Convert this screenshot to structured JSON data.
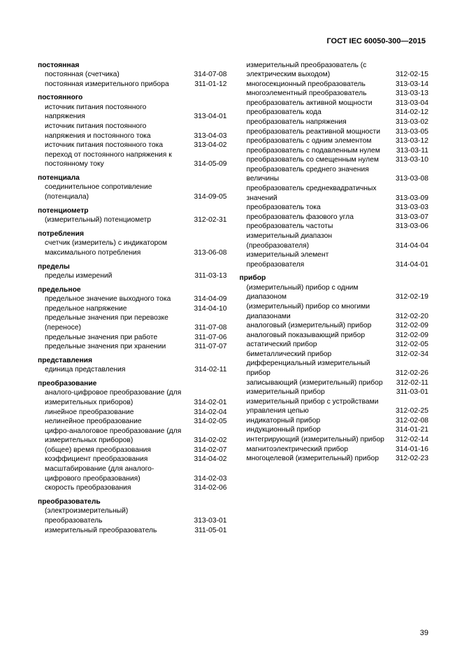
{
  "header": "ГОСТ IEC 60050-300—2015",
  "pageNumber": "39",
  "left": [
    {
      "type": "head",
      "text": "постоянная",
      "first": true
    },
    {
      "type": "entry",
      "term": "постоянная (счетчика)",
      "code": "314-07-08"
    },
    {
      "type": "entry",
      "term": "постоянная измерительного прибора",
      "code": "311-01-12"
    },
    {
      "type": "head",
      "text": "постоянного"
    },
    {
      "type": "entry",
      "term": "источник питания постоянного напряжения",
      "code": "313-04-01"
    },
    {
      "type": "entry",
      "term": "источник питания постоянного напряжения и постоянного тока",
      "code": "313-04-03"
    },
    {
      "type": "entry",
      "term": "источник питания постоянного тока",
      "code": "313-04-02"
    },
    {
      "type": "entry",
      "term": "переход от постоянного напряжения к постоянному току",
      "code": "314-05-09"
    },
    {
      "type": "head",
      "text": "потенциала"
    },
    {
      "type": "entry",
      "term": "соединительное сопротивление (потенциала)",
      "code": "314-09-05"
    },
    {
      "type": "head",
      "text": "потенциометр"
    },
    {
      "type": "entry",
      "term": "(измерительный) потенциометр",
      "code": "312-02-31"
    },
    {
      "type": "head",
      "text": "потребления"
    },
    {
      "type": "entry",
      "term": "счетчик (измеритель) с индикатором максимального потребления",
      "code": "313-06-08"
    },
    {
      "type": "head",
      "text": "пределы"
    },
    {
      "type": "entry",
      "term": "пределы измерений",
      "code": "311-03-13"
    },
    {
      "type": "head",
      "text": "предельное"
    },
    {
      "type": "entry",
      "term": "предельное значение выходного тока",
      "code": "314-04-09"
    },
    {
      "type": "entry",
      "term": "предельное напряжение",
      "code": "314-04-10"
    },
    {
      "type": "entry",
      "term": "предельные значения при перевозке (переносе)",
      "code": "311-07-08"
    },
    {
      "type": "entry",
      "term": "предельные значения при работе",
      "code": "311-07-06"
    },
    {
      "type": "entry",
      "term": "предельные значения при хранении",
      "code": "311-07-07"
    },
    {
      "type": "head",
      "text": "представления"
    },
    {
      "type": "entry",
      "term": "единица представления",
      "code": "314-02-11"
    },
    {
      "type": "head",
      "text": "преобразование"
    },
    {
      "type": "entry",
      "term": "аналого-цифровое преобразование (для измерительных приборов)",
      "code": "314-02-01"
    },
    {
      "type": "entry",
      "term": "линейное преобразование",
      "code": "314-02-04"
    },
    {
      "type": "entry",
      "term": "нелинейное преобразование",
      "code": "314-02-05"
    },
    {
      "type": "entry",
      "term": "цифро-аналоговое преобразование (для измерительных приборов)",
      "code": "314-02-02"
    },
    {
      "type": "entry",
      "term": "(общее) время преобразования",
      "code": "314-02-07"
    },
    {
      "type": "entry",
      "term": "коэффициент преобразования",
      "code": "314-04-02"
    },
    {
      "type": "entry",
      "term": "масштабирование (для аналого-цифрового преобразования)",
      "code": "314-02-03"
    },
    {
      "type": "entry",
      "term": "скорость преобразования",
      "code": "314-02-06"
    },
    {
      "type": "head",
      "text": "преобразователь"
    },
    {
      "type": "entry",
      "term": "(электроизмерительный) преобразователь",
      "code": "313-03-01"
    },
    {
      "type": "entry",
      "term": "измерительный преобразователь",
      "code": "311-05-01"
    }
  ],
  "right": [
    {
      "type": "entry",
      "term": "измерительный преобразователь (с электрическим выходом)",
      "code": "312-02-15"
    },
    {
      "type": "entry",
      "term": "многосекционный преобразователь",
      "code": "313-03-14"
    },
    {
      "type": "entry",
      "term": "многоэлементный преобразователь",
      "code": "313-03-13"
    },
    {
      "type": "entry",
      "term": "преобразователь активной мощности",
      "code": "313-03-04"
    },
    {
      "type": "entry",
      "term": "преобразователь кода",
      "code": "314-02-12"
    },
    {
      "type": "entry",
      "term": "преобразователь напряжения",
      "code": "313-03-02"
    },
    {
      "type": "entry",
      "term": "преобразователь реактивной мощности",
      "code": "313-03-05"
    },
    {
      "type": "entry",
      "term": "преобразователь с одним элементом",
      "code": "313-03-12"
    },
    {
      "type": "entry",
      "term": "преобразователь с подавленным нулем",
      "code": "313-03-11"
    },
    {
      "type": "entry",
      "term": "преобразователь со смещенным нулем",
      "code": "313-03-10"
    },
    {
      "type": "entry",
      "term": "преобразователь среднего значения величины",
      "code": "313-03-08"
    },
    {
      "type": "entry",
      "term": "преобразователь среднеквадратичных значений",
      "code": "313-03-09"
    },
    {
      "type": "entry",
      "term": "преобразователь тока",
      "code": "313-03-03"
    },
    {
      "type": "entry",
      "term": "преобразователь фазового угла",
      "code": "313-03-07"
    },
    {
      "type": "entry",
      "term": "преобразователь частоты",
      "code": "313-03-06"
    },
    {
      "type": "entry",
      "term": "измерительный диапазон (преобразователя)",
      "code": "314-04-04"
    },
    {
      "type": "entry",
      "term": "измерительный элемент преобразователя",
      "code": "314-04-01"
    },
    {
      "type": "head",
      "text": "прибор"
    },
    {
      "type": "entry",
      "term": "(измерительный) прибор с одним диапазоном",
      "code": "312-02-19"
    },
    {
      "type": "entry",
      "term": "(измерительный) прибор со многими диапазонами",
      "code": "312-02-20"
    },
    {
      "type": "entry",
      "term": "аналоговый (измерительный) прибор",
      "code": "312-02-09"
    },
    {
      "type": "entry",
      "term": "аналоговый показывающий прибор",
      "code": "312-02-09"
    },
    {
      "type": "entry",
      "term": "астатический прибор",
      "code": "312-02-05"
    },
    {
      "type": "entry",
      "term": "биметаллический прибор",
      "code": "312-02-34"
    },
    {
      "type": "entry",
      "term": "дифференциальный измерительный прибор",
      "code": "312-02-26"
    },
    {
      "type": "entry",
      "term": "записывающий (измерительный) прибор",
      "code": "312-02-11"
    },
    {
      "type": "entry",
      "term": "измерительный прибор",
      "code": "311-03-01"
    },
    {
      "type": "entry",
      "term": "измерительный прибор с устройствами управления цепью",
      "code": "312-02-25"
    },
    {
      "type": "entry",
      "term": "индикаторный прибор",
      "code": "312-02-08"
    },
    {
      "type": "entry",
      "term": "индукционный прибор",
      "code": "314-01-21"
    },
    {
      "type": "entry",
      "term": "интегрирующий (измерительный) прибор",
      "code": "312-02-14"
    },
    {
      "type": "entry",
      "term": "магнитоэлектрический прибор",
      "code": "314-01-16"
    },
    {
      "type": "entry",
      "term": "многоцелевой (измерительный) прибор",
      "code": "312-02-23"
    }
  ]
}
